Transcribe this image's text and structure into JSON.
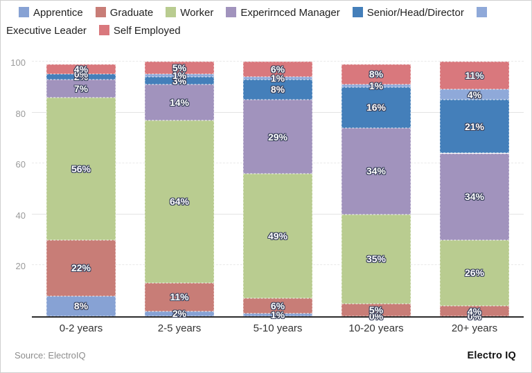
{
  "page": {
    "source_note": "Source: ElectroIQ",
    "brand": "Electro IQ"
  },
  "chart_data": {
    "type": "bar",
    "stacked": true,
    "orientation": "vertical",
    "title": "",
    "xlabel": "",
    "ylabel": "",
    "ylim": [
      0,
      100
    ],
    "yticks": [
      20,
      40,
      60,
      80,
      100
    ],
    "grid": true,
    "legend_position": "top",
    "value_label_format": "{v}%",
    "categories": [
      "0-2 years",
      "2-5 years",
      "5-10 years",
      "10-20 years",
      "20+ years"
    ],
    "series": [
      {
        "name": "Apprentice",
        "color": "#87a2d4",
        "values": [
          8,
          2,
          1,
          0,
          0
        ]
      },
      {
        "name": "Graduate",
        "color": "#c87d77",
        "values": [
          22,
          11,
          6,
          5,
          4
        ]
      },
      {
        "name": "Worker",
        "color": "#b9cc90",
        "values": [
          56,
          64,
          49,
          35,
          26
        ]
      },
      {
        "name": "Experirnced Manager",
        "color": "#a193bd",
        "values": [
          7,
          14,
          29,
          34,
          34
        ]
      },
      {
        "name": "Senior/Head/Director",
        "color": "#447fba",
        "values": [
          2,
          3,
          8,
          16,
          21
        ]
      },
      {
        "name": "Executive Leader",
        "color": "#8fa9d9",
        "values": [
          0,
          1,
          1,
          1,
          4
        ]
      },
      {
        "name": "Self Employed",
        "color": "#d9787d",
        "values": [
          4,
          5,
          6,
          8,
          11
        ]
      }
    ]
  }
}
